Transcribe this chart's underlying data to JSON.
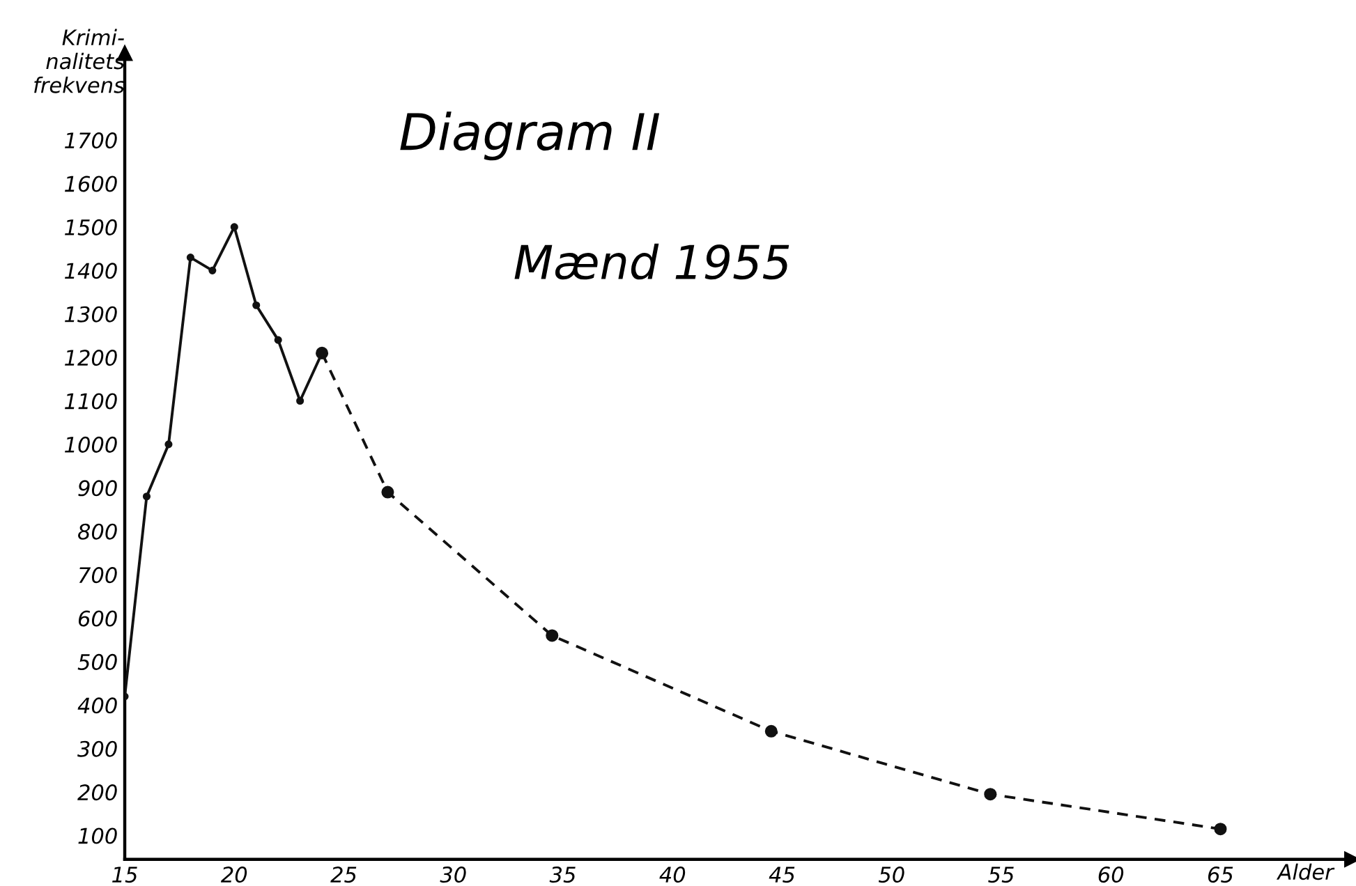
{
  "chart_data": {
    "type": "line",
    "title": "Diagram II",
    "xlabel": "Alder",
    "ylabel": "Krimi-\nnalitets\nfrekvens",
    "annotations": [
      "Mænd 1955"
    ],
    "series": [
      {
        "color": "#111111",
        "line_style": "solid",
        "x": [
          15,
          16,
          17,
          18,
          19,
          20,
          21,
          22,
          23,
          24
        ],
        "values": [
          420,
          880,
          1000,
          1430,
          1400,
          1500,
          1320,
          1240,
          1100,
          1210
        ]
      },
      {
        "color": "#111111",
        "line_style": "dashed",
        "x": [
          24,
          27,
          34.5,
          44.5,
          54.5,
          65
        ],
        "values": [
          1210,
          890,
          560,
          340,
          195,
          115
        ]
      }
    ],
    "marker": "circle",
    "grid": false,
    "legend": false,
    "xlim": [
      15,
      71
    ],
    "ylim": [
      45,
      1900
    ],
    "xticks": [
      15,
      20,
      25,
      30,
      35,
      40,
      45,
      50,
      55,
      60,
      65
    ],
    "yticks": [
      100,
      200,
      300,
      400,
      500,
      600,
      700,
      800,
      900,
      1000,
      1100,
      1200,
      1300,
      1400,
      1500,
      1600,
      1700
    ]
  }
}
